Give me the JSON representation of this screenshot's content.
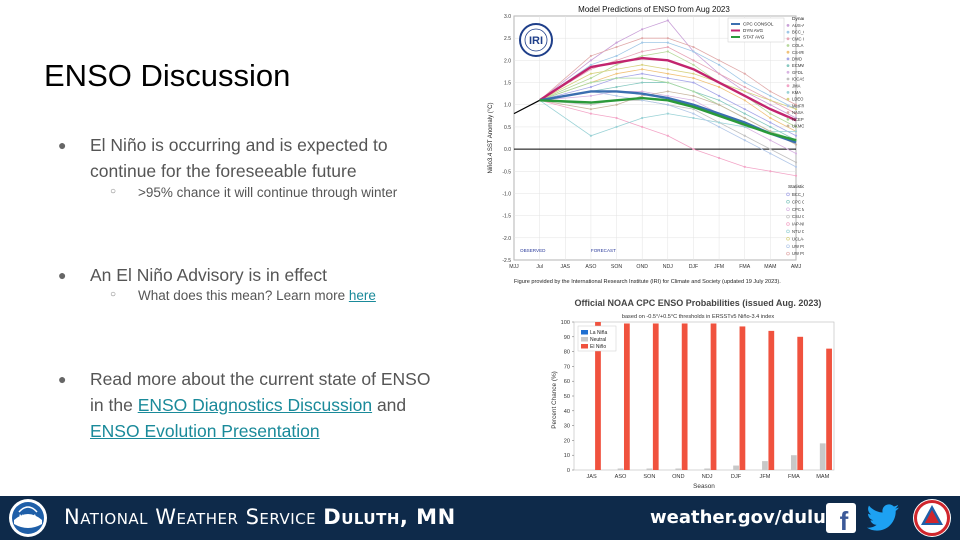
{
  "slide": {
    "title": "ENSO Discussion",
    "bullet1": "El Niño is occurring and is expected to continue for the foreseeable future",
    "bullet1_sub": ">95% chance it will continue through winter",
    "bullet2": "An El Niño Advisory is in effect",
    "bullet2_sub_text": "What does this mean? Learn more ",
    "bullet2_sub_link": "here",
    "bullet3_pre": "Read more about the current state of ENSO in the ",
    "bullet3_link1": "ENSO Diagnostics Discussion",
    "bullet3_mid": " and ",
    "bullet3_link2": "ENSO Evolution Presentation"
  },
  "footer": {
    "org_prefix": "National Weather Service ",
    "org_office": "Duluth, MN",
    "website": "weather.gov/duluth",
    "noaa_logo": "NOAA",
    "facebook_icon": "f",
    "colors": {
      "background": "#0e2a4a",
      "text": "#ffffff"
    }
  },
  "plume_chart": {
    "title": "Model Predictions of ENSO from Aug 2023",
    "ylabel": "Niño3.4 SST Anomaly (°C)",
    "logo": "IRI",
    "caption": "Figure provided by the International Research Institute (IRI) for Climate and Society (updated 19 July 2023).",
    "observed_label": "OBSERVED",
    "forecast_label": "FORECAST",
    "x": [
      "MJJ",
      "Jul",
      "JAS",
      "ASO",
      "SON",
      "OND",
      "NDJ",
      "DJF",
      "JFM",
      "FMA",
      "MAM",
      "AMJ"
    ],
    "ylim": [
      -2.5,
      3.0
    ],
    "yticks": [
      "3.0",
      "2.5",
      "2.0",
      "1.5",
      "1.0",
      "0.5",
      "0.0",
      "-0.5",
      "-1.0",
      "-1.5",
      "-2.0",
      "-2.5"
    ],
    "avg_legend": [
      "CPC CONSOL",
      "DYN AVG",
      "STAT AVG"
    ],
    "dynamical_title": "Dynamical Models",
    "dynamical_models": [
      "AUS-ACCESS",
      "BCC_CSM11m",
      "CMC CANSIP",
      "COLA CCSM4",
      "CS-IRI-MM",
      "DWD",
      "ECMWF",
      "GFDL SPEAR",
      "IOCAS ICM",
      "JMA",
      "KMA",
      "LDEO",
      "MetFRANCE",
      "NASA GMAO",
      "NCEP CFSv2",
      "UKMO"
    ],
    "statistical_title": "Statistical Models",
    "statistical_models": [
      "BCC_RZDM",
      "CPC CA",
      "CPC MRKOV",
      "CSU CLIPR",
      "IAP-NN",
      "NTU CODA",
      "UCLA-TCD",
      "UW PSL-CSLM",
      "UW PSL-LIM"
    ],
    "colors": {
      "cpc": "#3b6fb0",
      "dyn": "#c2246e",
      "stat": "#2a9a3a"
    }
  },
  "chart_data": {
    "type": "bar",
    "title": "Official NOAA CPC ENSO Probabilities (issued Aug. 2023)",
    "subtitle": "based on -0.5°/+0.5°C thresholds in ERSSTv5 Niño-3.4 index",
    "xlabel": "Season",
    "ylabel": "Percent Chance (%)",
    "ylim": [
      0,
      100
    ],
    "yticks": [
      0,
      10,
      20,
      30,
      40,
      50,
      60,
      70,
      80,
      90,
      100
    ],
    "categories": [
      "JAS",
      "ASO",
      "SON",
      "OND",
      "NDJ",
      "DJF",
      "JFM",
      "FMA",
      "MAM"
    ],
    "series": [
      {
        "name": "La Niña",
        "color": "#1f6fd0",
        "values": [
          0,
          0,
          0,
          0,
          0,
          0,
          0,
          0,
          0
        ]
      },
      {
        "name": "Neutral",
        "color": "#c8c8c8",
        "values": [
          0,
          1,
          1,
          1,
          1,
          3,
          6,
          10,
          18
        ]
      },
      {
        "name": "El Niño",
        "color": "#f0523e",
        "values": [
          100,
          99,
          99,
          99,
          99,
          97,
          94,
          90,
          82
        ]
      }
    ],
    "legend_position": "top-left",
    "grid": false
  }
}
